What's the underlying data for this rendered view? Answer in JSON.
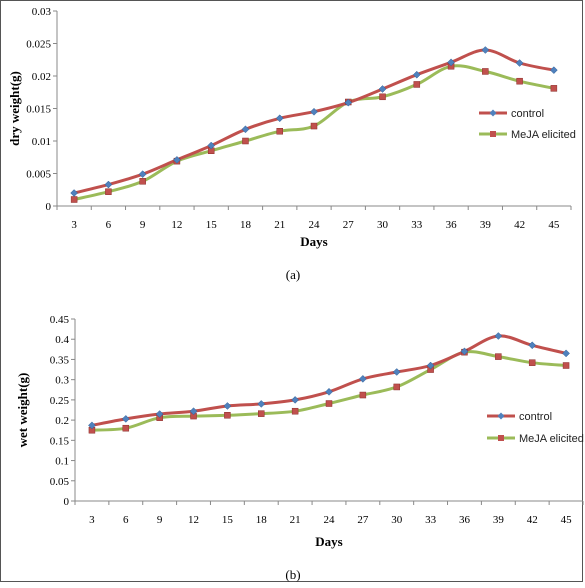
{
  "panels": [
    {
      "caption": "(a)",
      "chart_data": {
        "type": "line",
        "xlabel": "Days",
        "ylabel": "dry weight(g)",
        "categories": [
          "3",
          "6",
          "9",
          "12",
          "15",
          "18",
          "21",
          "24",
          "27",
          "30",
          "33",
          "36",
          "39",
          "42",
          "45"
        ],
        "ylim": [
          0,
          0.03
        ],
        "yticks": [
          "0",
          "0.005",
          "0.01",
          "0.015",
          "0.02",
          "0.025",
          "0.03"
        ],
        "yticks_values": [
          0,
          0.005,
          0.01,
          0.015,
          0.02,
          0.025,
          0.03
        ],
        "grid": false,
        "legend_position": "right",
        "series": [
          {
            "name": "control",
            "color": "#C0504D",
            "marker_color": "#4F81BD",
            "marker": "diamond",
            "values": [
              0.002,
              0.0033,
              0.0049,
              0.0071,
              0.0093,
              0.0118,
              0.0135,
              0.0145,
              0.0159,
              0.018,
              0.0202,
              0.0221,
              0.024,
              0.022,
              0.0209
            ]
          },
          {
            "name": "MeJA elicited",
            "color": "#9BBB59",
            "marker_color": "#C0504D",
            "marker": "square",
            "values": [
              0.001,
              0.0022,
              0.0038,
              0.0069,
              0.0085,
              0.01,
              0.0115,
              0.0123,
              0.016,
              0.0168,
              0.0187,
              0.0215,
              0.0207,
              0.0192,
              0.0181
            ]
          }
        ]
      }
    },
    {
      "caption": "(b)",
      "chart_data": {
        "type": "line",
        "xlabel": "Days",
        "ylabel": "wet weight(g)",
        "categories": [
          "3",
          "6",
          "9",
          "12",
          "15",
          "18",
          "21",
          "24",
          "27",
          "30",
          "33",
          "36",
          "39",
          "42",
          "45"
        ],
        "ylim": [
          0,
          0.45
        ],
        "yticks": [
          "0",
          "0.05",
          "0.1",
          "0.15",
          "0.2",
          "0.25",
          "0.3",
          "0.35",
          "0.4",
          "0.45"
        ],
        "yticks_values": [
          0,
          0.05,
          0.1,
          0.15,
          0.2,
          0.25,
          0.3,
          0.35,
          0.4,
          0.45
        ],
        "grid": false,
        "legend_position": "right",
        "series": [
          {
            "name": "control",
            "color": "#C0504D",
            "marker_color": "#4F81BD",
            "marker": "diamond",
            "values": [
              0.187,
              0.203,
              0.215,
              0.222,
              0.235,
              0.24,
              0.25,
              0.27,
              0.302,
              0.319,
              0.335,
              0.37,
              0.408,
              0.385,
              0.365
            ]
          },
          {
            "name": "MeJA elicited",
            "color": "#9BBB59",
            "marker_color": "#C0504D",
            "marker": "square",
            "values": [
              0.175,
              0.18,
              0.206,
              0.21,
              0.212,
              0.216,
              0.222,
              0.241,
              0.262,
              0.282,
              0.325,
              0.368,
              0.357,
              0.342,
              0.335
            ]
          }
        ]
      }
    }
  ]
}
